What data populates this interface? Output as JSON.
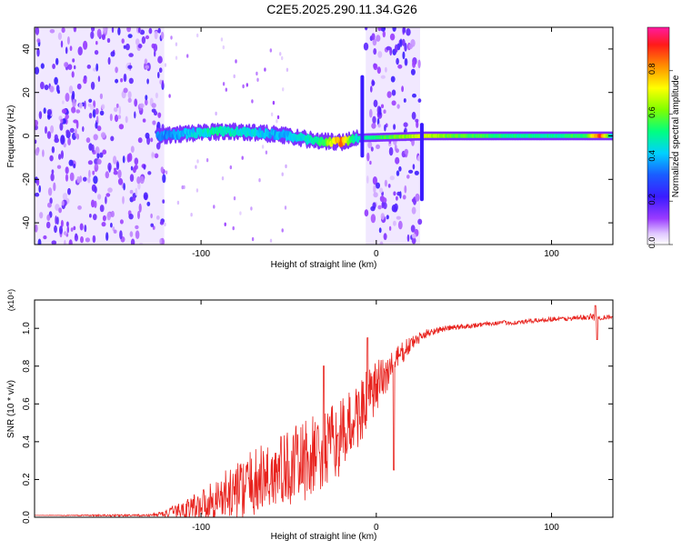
{
  "title": "C2E5.2025.290.11.34.G26",
  "chart_data": [
    {
      "type": "heatmap",
      "xlabel": "Height of straight line (km)",
      "ylabel": "Frequency (Hz)",
      "xlim": [
        -195,
        135
      ],
      "ylim": [
        -50,
        50
      ],
      "xticks": [
        -100,
        0,
        100
      ],
      "yticks": [
        -40,
        -20,
        0,
        20,
        40
      ],
      "colorbar": {
        "label": "Normalized spectral amplitude",
        "range": [
          0,
          1
        ],
        "ticks": [
          "0.0",
          "0.2",
          "0.4",
          "0.6",
          "0.8"
        ],
        "tick_values": [
          0.0,
          0.2,
          0.4,
          0.6,
          0.8
        ]
      },
      "noise_regions": [
        {
          "x_from": -195,
          "x_to": -121,
          "density": "high"
        },
        {
          "x_from": -6,
          "x_to": 25,
          "density": "high"
        }
      ],
      "signal_track": [
        {
          "x": -125,
          "freq": 0,
          "amp": 0.35
        },
        {
          "x": -110,
          "freq": 1,
          "amp": 0.4
        },
        {
          "x": -100,
          "freq": 1.5,
          "amp": 0.45
        },
        {
          "x": -90,
          "freq": 2,
          "amp": 0.5
        },
        {
          "x": -80,
          "freq": 2,
          "amp": 0.45
        },
        {
          "x": -70,
          "freq": 1.5,
          "amp": 0.45
        },
        {
          "x": -60,
          "freq": 1,
          "amp": 0.4
        },
        {
          "x": -50,
          "freq": 0,
          "amp": 0.4
        },
        {
          "x": -40,
          "freq": -1.5,
          "amp": 0.45
        },
        {
          "x": -30,
          "freq": -2.5,
          "amp": 0.55
        },
        {
          "x": -20,
          "freq": -3,
          "amp": 0.85
        },
        {
          "x": -12,
          "freq": -1,
          "amp": 0.45
        },
        {
          "x": 28,
          "freq": 0,
          "amp": 0.7
        },
        {
          "x": 40,
          "freq": 0,
          "amp": 0.6
        },
        {
          "x": 60,
          "freq": 0,
          "amp": 0.55
        },
        {
          "x": 80,
          "freq": 0,
          "amp": 0.5
        },
        {
          "x": 100,
          "freq": 0,
          "amp": 0.5
        },
        {
          "x": 120,
          "freq": 0,
          "amp": 0.55
        },
        {
          "x": 128,
          "freq": 0,
          "amp": 0.9
        },
        {
          "x": 135,
          "freq": 0,
          "amp": 0.4
        }
      ]
    },
    {
      "type": "line",
      "xlabel": "Height of straight line (km)",
      "ylabel": "SNR (10 * v/v)",
      "yscale_label": "(x10⁴)",
      "xlim": [
        -195,
        135
      ],
      "ylim": [
        0,
        1.15
      ],
      "xticks": [
        -100,
        0,
        100
      ],
      "yticks": [
        0.0,
        0.2,
        0.4,
        0.6,
        0.8,
        1.0
      ],
      "ytick_labels": [
        "0.0",
        "0.2",
        "0.4",
        "0.6",
        "0.8",
        "1.0"
      ],
      "series": [
        {
          "name": "SNR",
          "color": "#e8231e",
          "x": [
            -195,
            -150,
            -130,
            -120,
            -110,
            -100,
            -90,
            -80,
            -70,
            -60,
            -50,
            -40,
            -30,
            -20,
            -10,
            0,
            10,
            20,
            30,
            40,
            50,
            60,
            70,
            80,
            90,
            100,
            110,
            120,
            125,
            130,
            135
          ],
          "y": [
            0.01,
            0.01,
            0.01,
            0.02,
            0.04,
            0.07,
            0.1,
            0.14,
            0.18,
            0.22,
            0.26,
            0.3,
            0.35,
            0.42,
            0.55,
            0.68,
            0.82,
            0.92,
            0.98,
            1.0,
            1.01,
            1.02,
            1.03,
            1.03,
            1.04,
            1.05,
            1.05,
            1.06,
            1.06,
            1.06,
            1.06
          ],
          "noise_amplitude": [
            0.0,
            0.005,
            0.005,
            0.02,
            0.05,
            0.08,
            0.12,
            0.15,
            0.18,
            0.2,
            0.2,
            0.22,
            0.22,
            0.2,
            0.18,
            0.15,
            0.08,
            0.04,
            0.02,
            0.015,
            0.015,
            0.012,
            0.012,
            0.012,
            0.012,
            0.012,
            0.012,
            0.015,
            0.02,
            0.015,
            0.012
          ],
          "spikes": [
            {
              "x": -30,
              "y": 0.8
            },
            {
              "x": -5,
              "y": 0.95
            },
            {
              "x": 10,
              "y": 0.25
            },
            {
              "x": 125,
              "y": 1.12
            },
            {
              "x": 126,
              "y": 0.94
            }
          ]
        }
      ]
    }
  ]
}
